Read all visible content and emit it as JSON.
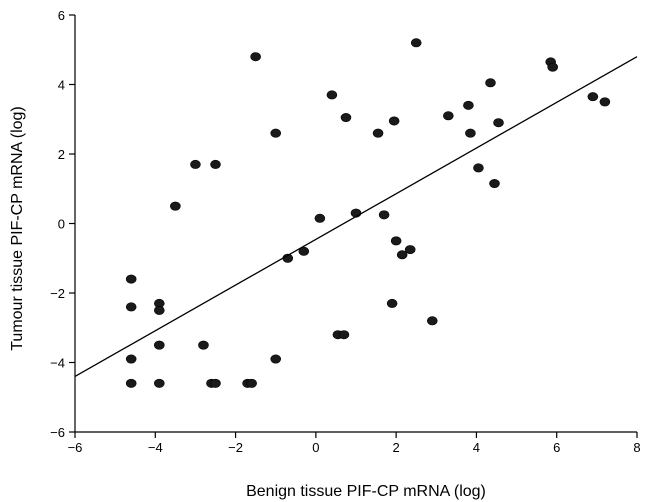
{
  "chart_data": {
    "type": "scatter",
    "xlabel": "Benign tissue PIF-CP mRNA (log)",
    "ylabel": "Tumour tissue PIF-CP mRNA (log)",
    "xlim": [
      -6,
      8
    ],
    "ylim": [
      -6,
      6
    ],
    "x_ticks": [
      -6,
      -4,
      -2,
      0,
      2,
      4,
      6,
      8
    ],
    "y_ticks": [
      -6,
      -4,
      -2,
      0,
      2,
      4,
      6
    ],
    "x_tick_labels": [
      "−6",
      "−4",
      "−2",
      "0",
      "2",
      "4",
      "6",
      "8"
    ],
    "y_tick_labels": [
      "−6",
      "−4",
      "−2",
      "0",
      "2",
      "4",
      "6"
    ],
    "grid": false,
    "legend": "none",
    "marker_color": "#1a1a1a",
    "points": [
      {
        "x": -4.6,
        "y": -1.6
      },
      {
        "x": -4.6,
        "y": -2.4
      },
      {
        "x": -4.6,
        "y": -3.9
      },
      {
        "x": -4.6,
        "y": -4.6
      },
      {
        "x": -3.9,
        "y": -2.3
      },
      {
        "x": -3.9,
        "y": -2.5
      },
      {
        "x": -3.9,
        "y": -3.5
      },
      {
        "x": -3.9,
        "y": -4.6
      },
      {
        "x": -3.5,
        "y": 0.5
      },
      {
        "x": -3.0,
        "y": 1.7
      },
      {
        "x": -2.8,
        "y": -3.5
      },
      {
        "x": -2.6,
        "y": -4.6
      },
      {
        "x": -2.5,
        "y": 1.7
      },
      {
        "x": -2.5,
        "y": -4.6
      },
      {
        "x": -1.7,
        "y": -4.6
      },
      {
        "x": -1.6,
        "y": -4.6
      },
      {
        "x": -1.5,
        "y": 4.8
      },
      {
        "x": -1.0,
        "y": 2.6
      },
      {
        "x": -1.0,
        "y": -3.9
      },
      {
        "x": -0.7,
        "y": -1.0
      },
      {
        "x": -0.3,
        "y": -0.8
      },
      {
        "x": 0.1,
        "y": 0.15
      },
      {
        "x": 0.4,
        "y": 3.7
      },
      {
        "x": 0.55,
        "y": -3.2
      },
      {
        "x": 0.7,
        "y": -3.2
      },
      {
        "x": 0.75,
        "y": 3.05
      },
      {
        "x": 1.0,
        "y": 0.3
      },
      {
        "x": 1.55,
        "y": 2.6
      },
      {
        "x": 1.7,
        "y": 0.25
      },
      {
        "x": 1.9,
        "y": -2.3
      },
      {
        "x": 1.95,
        "y": 2.95
      },
      {
        "x": 2.0,
        "y": -0.5
      },
      {
        "x": 2.15,
        "y": -0.9
      },
      {
        "x": 2.35,
        "y": -0.75
      },
      {
        "x": 2.5,
        "y": 5.2
      },
      {
        "x": 2.9,
        "y": -2.8
      },
      {
        "x": 3.3,
        "y": 3.1
      },
      {
        "x": 3.8,
        "y": 3.4
      },
      {
        "x": 3.85,
        "y": 2.6
      },
      {
        "x": 4.05,
        "y": 1.6
      },
      {
        "x": 4.35,
        "y": 4.05
      },
      {
        "x": 4.45,
        "y": 1.15
      },
      {
        "x": 4.55,
        "y": 2.9
      },
      {
        "x": 5.85,
        "y": 4.65
      },
      {
        "x": 5.9,
        "y": 4.5
      },
      {
        "x": 6.9,
        "y": 3.65
      },
      {
        "x": 7.2,
        "y": 3.5
      }
    ],
    "fit_line": {
      "x": [
        -6,
        8
      ],
      "y": [
        -4.4,
        4.8
      ]
    }
  }
}
